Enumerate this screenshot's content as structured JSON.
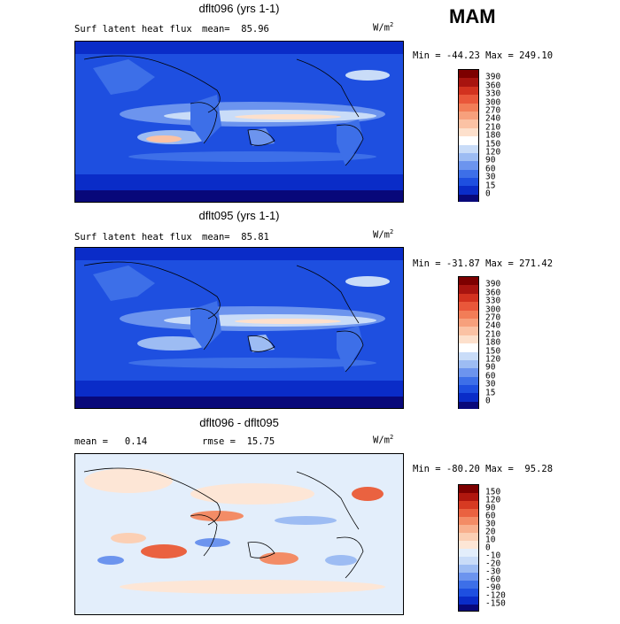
{
  "season": "MAM",
  "panels": [
    {
      "title": "dflt096 (yrs 1-1)",
      "left_label": "Surf latent heat flux",
      "stat_label": "mean=  85.96",
      "units": "W/m",
      "units_exp": "2",
      "minmax": "Min = -44.23 Max = 249.10",
      "colorbar": {
        "colors": [
          "#08087a",
          "#0a2cc8",
          "#1e4fe0",
          "#3d6fe8",
          "#6c94ee",
          "#9dbcf3",
          "#c9dcf8",
          "#ffffff",
          "#fde0cc",
          "#fbc2a4",
          "#f7a07c",
          "#f27d57",
          "#e9573a",
          "#d2321f",
          "#a8140f",
          "#7d0000"
        ],
        "labels": [
          "390",
          "360",
          "330",
          "300",
          "270",
          "240",
          "210",
          "180",
          "150",
          "120",
          "90",
          "60",
          "30",
          "15",
          "0"
        ]
      }
    },
    {
      "title": "dflt095 (yrs 1-1)",
      "left_label": "Surf latent heat flux",
      "stat_label": "mean=  85.81",
      "units": "W/m",
      "units_exp": "2",
      "minmax": "Min = -31.87 Max = 271.42",
      "colorbar": {
        "colors": [
          "#08087a",
          "#0a2cc8",
          "#1e4fe0",
          "#3d6fe8",
          "#6c94ee",
          "#9dbcf3",
          "#c9dcf8",
          "#ffffff",
          "#fde0cc",
          "#fbc2a4",
          "#f7a07c",
          "#f27d57",
          "#e9573a",
          "#d2321f",
          "#a8140f",
          "#7d0000"
        ],
        "labels": [
          "390",
          "360",
          "330",
          "300",
          "270",
          "240",
          "210",
          "180",
          "150",
          "120",
          "90",
          "60",
          "30",
          "15",
          "0"
        ]
      }
    },
    {
      "title": "dflt096 - dflt095",
      "left_label": "mean =   0.14",
      "stat_label": "rmse =  15.75",
      "units": "W/m",
      "units_exp": "2",
      "minmax": "Min = -80.20 Max =  95.28",
      "colorbar": {
        "colors": [
          "#08087a",
          "#0a2cc8",
          "#1e4fe0",
          "#3d6fe8",
          "#6c94ee",
          "#9dbcf3",
          "#c9dcf8",
          "#e3eefb",
          "#fde6d6",
          "#fbcfb4",
          "#f8b08e",
          "#f38c66",
          "#ea6240",
          "#d73a22",
          "#b0170e",
          "#7d0000"
        ],
        "labels": [
          "150",
          "120",
          "90",
          "60",
          "30",
          "20",
          "10",
          "0",
          "-10",
          "-20",
          "-30",
          "-60",
          "-90",
          "-120",
          "-150"
        ]
      }
    }
  ]
}
